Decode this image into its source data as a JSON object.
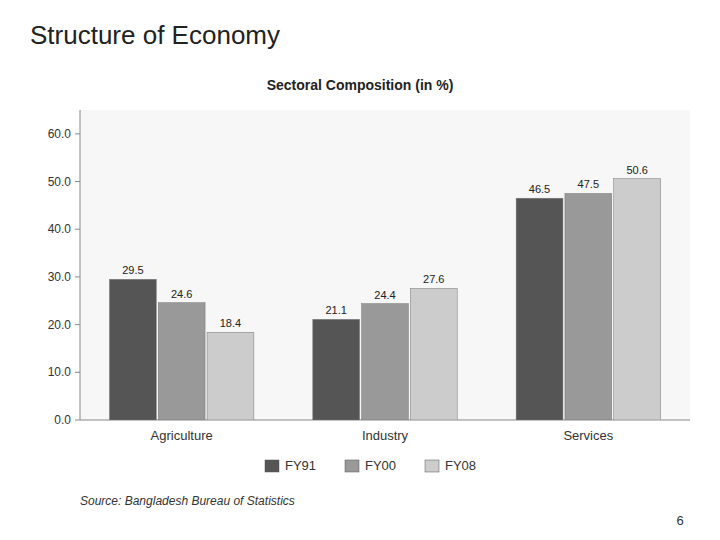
{
  "chart_data": {
    "type": "bar",
    "title": "Structure of Economy",
    "subtitle": "Sectoral Composition (in %)",
    "categories": [
      "Agriculture",
      "Industry",
      "Services"
    ],
    "series": [
      {
        "name": "FY91",
        "color": "#555555",
        "values": [
          29.5,
          21.1,
          46.5
        ]
      },
      {
        "name": "FY00",
        "color": "#999999",
        "values": [
          24.6,
          24.4,
          47.5
        ]
      },
      {
        "name": "FY08",
        "color": "#cccccc",
        "values": [
          18.4,
          27.6,
          50.6
        ]
      }
    ],
    "ylim": [
      0,
      65
    ],
    "yticks": [
      {
        "value": 0,
        "label": "0.0"
      },
      {
        "value": 10,
        "label": "10.0"
      },
      {
        "value": 20,
        "label": "20.0"
      },
      {
        "value": 30,
        "label": "30.0"
      },
      {
        "value": 40,
        "label": "40.0"
      },
      {
        "value": 50,
        "label": "50.0"
      },
      {
        "value": 60,
        "label": "60.0"
      }
    ],
    "grid": false,
    "legend": "bottom",
    "data_labels": true,
    "annotations": [
      "Source: Bangladesh Bureau of Statistics",
      "6"
    ]
  }
}
